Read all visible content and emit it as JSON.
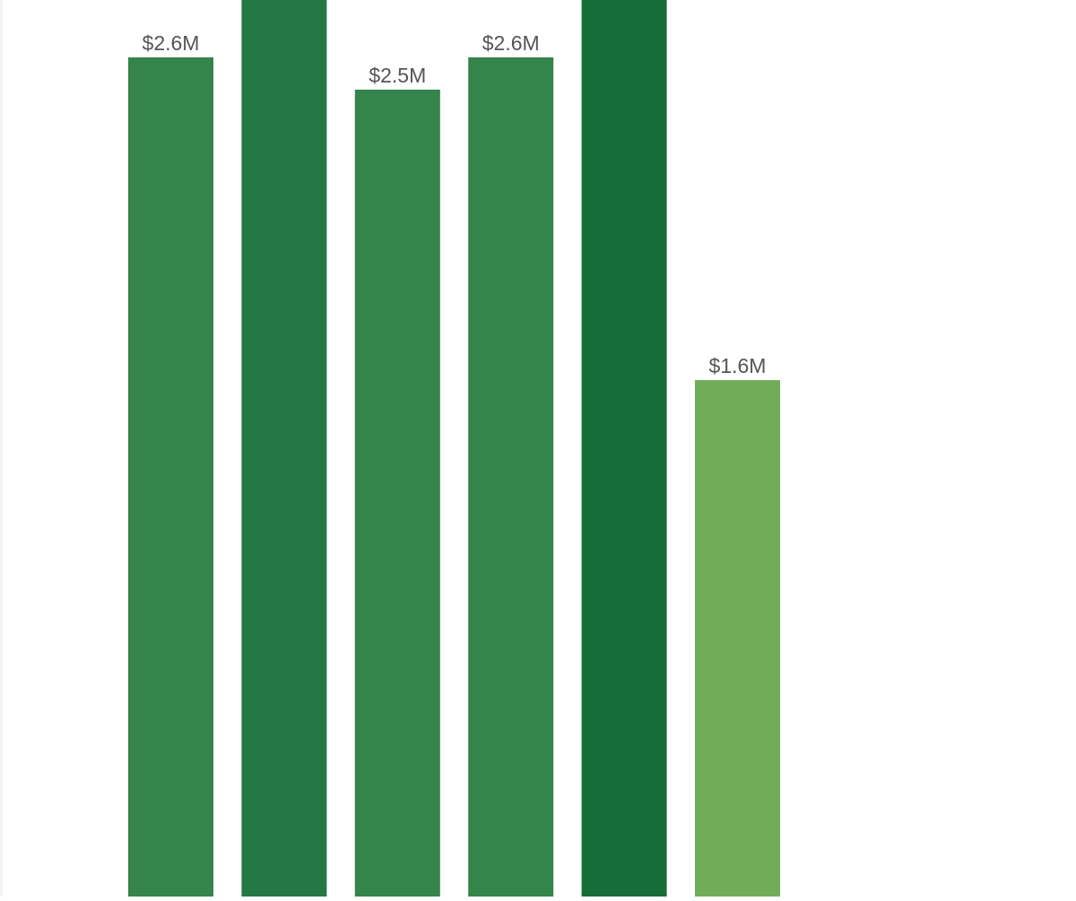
{
  "chart_data": {
    "type": "bar",
    "title": "",
    "xlabel": "",
    "ylabel": "",
    "ylim_visible": [
      0,
      2.6
    ],
    "grid": false,
    "legend": "none",
    "values": [
      2.6,
      null,
      2.5,
      2.6,
      null,
      1.6
    ],
    "data_labels": [
      "$2.6M",
      "",
      "$2.5M",
      "$2.6M",
      "",
      "$1.6M"
    ],
    "value_unit": "$M",
    "note_clipped_bars": "Bars 2 and 5 extend above the visible area; their labels are not shown.",
    "colors": [
      "#35844b",
      "#257844",
      "#35844b",
      "#35844b",
      "#176d38",
      "#71ad58"
    ]
  },
  "colors": {
    "background": "#ffffff",
    "label_text": "#555555"
  }
}
